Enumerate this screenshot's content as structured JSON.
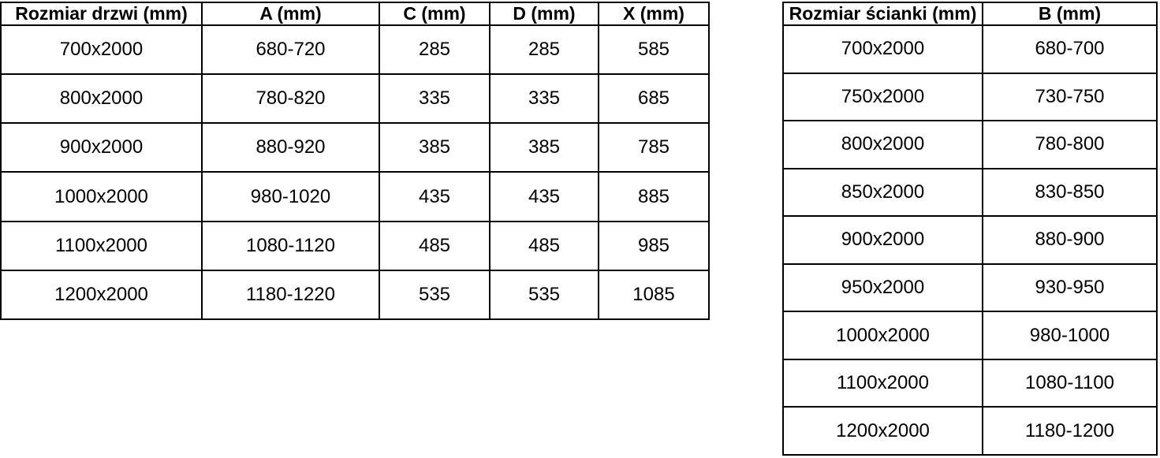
{
  "colors": {
    "background": "#ffffff",
    "border": "#000000",
    "text": "#000000"
  },
  "tables": {
    "doors": {
      "name": "door-sizes",
      "headers": [
        "Rozmiar drzwi (mm)",
        "A (mm)",
        "C (mm)",
        "D (mm)",
        "X (mm)"
      ],
      "rows": [
        [
          "700x2000",
          "680-720",
          "285",
          "285",
          "585"
        ],
        [
          "800x2000",
          "780-820",
          "335",
          "335",
          "685"
        ],
        [
          "900x2000",
          "880-920",
          "385",
          "385",
          "785"
        ],
        [
          "1000x2000",
          "980-1020",
          "435",
          "435",
          "885"
        ],
        [
          "1100x2000",
          "1080-1120",
          "485",
          "485",
          "985"
        ],
        [
          "1200x2000",
          "1180-1220",
          "535",
          "535",
          "1085"
        ]
      ]
    },
    "walls": {
      "name": "wall-panel-sizes",
      "headers": [
        "Rozmiar ścianki (mm)",
        "B (mm)"
      ],
      "rows": [
        [
          "700x2000",
          "680-700"
        ],
        [
          "750x2000",
          "730-750"
        ],
        [
          "800x2000",
          "780-800"
        ],
        [
          "850x2000",
          "830-850"
        ],
        [
          "900x2000",
          "880-900"
        ],
        [
          "950x2000",
          "930-950"
        ],
        [
          "1000x2000",
          "980-1000"
        ],
        [
          "1100x2000",
          "1080-1100"
        ],
        [
          "1200x2000",
          "1180-1200"
        ]
      ]
    }
  }
}
